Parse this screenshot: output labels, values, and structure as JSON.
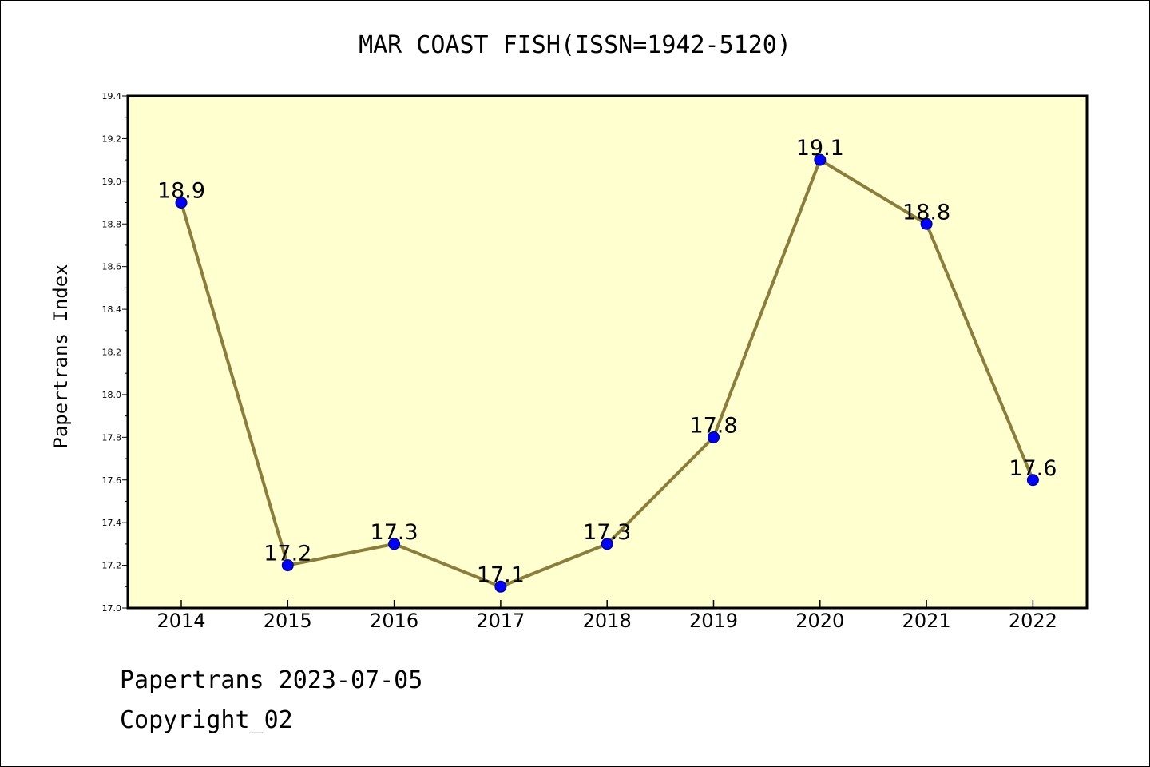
{
  "chart_data": {
    "type": "line",
    "title": "MAR COAST FISH(ISSN=1942-5120)",
    "xlabel": "",
    "ylabel": "Papertrans Index",
    "categories": [
      "2014",
      "2015",
      "2016",
      "2017",
      "2018",
      "2019",
      "2020",
      "2021",
      "2022"
    ],
    "series": [
      {
        "values": [
          18.9,
          17.2,
          17.3,
          17.1,
          17.3,
          17.8,
          19.1,
          18.8,
          17.6
        ]
      }
    ],
    "data_labels": [
      "18.9",
      "17.2",
      "17.3",
      "17.1",
      "17.3",
      "17.8",
      "19.1",
      "18.8",
      "17.6"
    ],
    "ylim": [
      17.0,
      19.4
    ],
    "yticks": [
      "17.0",
      "17.2",
      "17.4",
      "17.6",
      "17.8",
      "18.0",
      "18.2",
      "18.4",
      "18.6",
      "18.8",
      "19.0",
      "19.2",
      "19.4"
    ],
    "grid": false,
    "legend": "none",
    "colors": {
      "plot_background": "#ffffd0",
      "line": "#8b7d3a",
      "marker": "#0000ff"
    }
  },
  "footer": {
    "line1": "Papertrans 2023-07-05",
    "line2": "Copyright_02"
  }
}
